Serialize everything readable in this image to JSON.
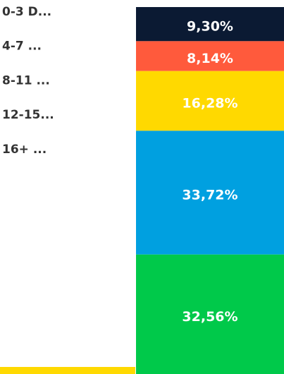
{
  "chart_data": {
    "type": "stacked_bar",
    "series": [
      {
        "name": "0-3 D...",
        "color": "#0b1a33",
        "values": [
          9.3
        ],
        "value_labels": [
          "9,30%"
        ]
      },
      {
        "name": "4-7 ...",
        "color": "#ff5a3c",
        "values": [
          8.14
        ],
        "value_labels": [
          "8,14%"
        ]
      },
      {
        "name": "8-11 ...",
        "color": "#ffd900",
        "values": [
          16.28
        ],
        "value_labels": [
          "16,28%"
        ]
      },
      {
        "name": "12-15...",
        "color": "#00a0e0",
        "values": [
          33.72
        ],
        "value_labels": [
          "33,72%"
        ]
      },
      {
        "name": "16+ ...",
        "color": "#00c94a",
        "values": [
          32.56
        ],
        "value_labels": [
          "32,56%"
        ]
      }
    ]
  }
}
